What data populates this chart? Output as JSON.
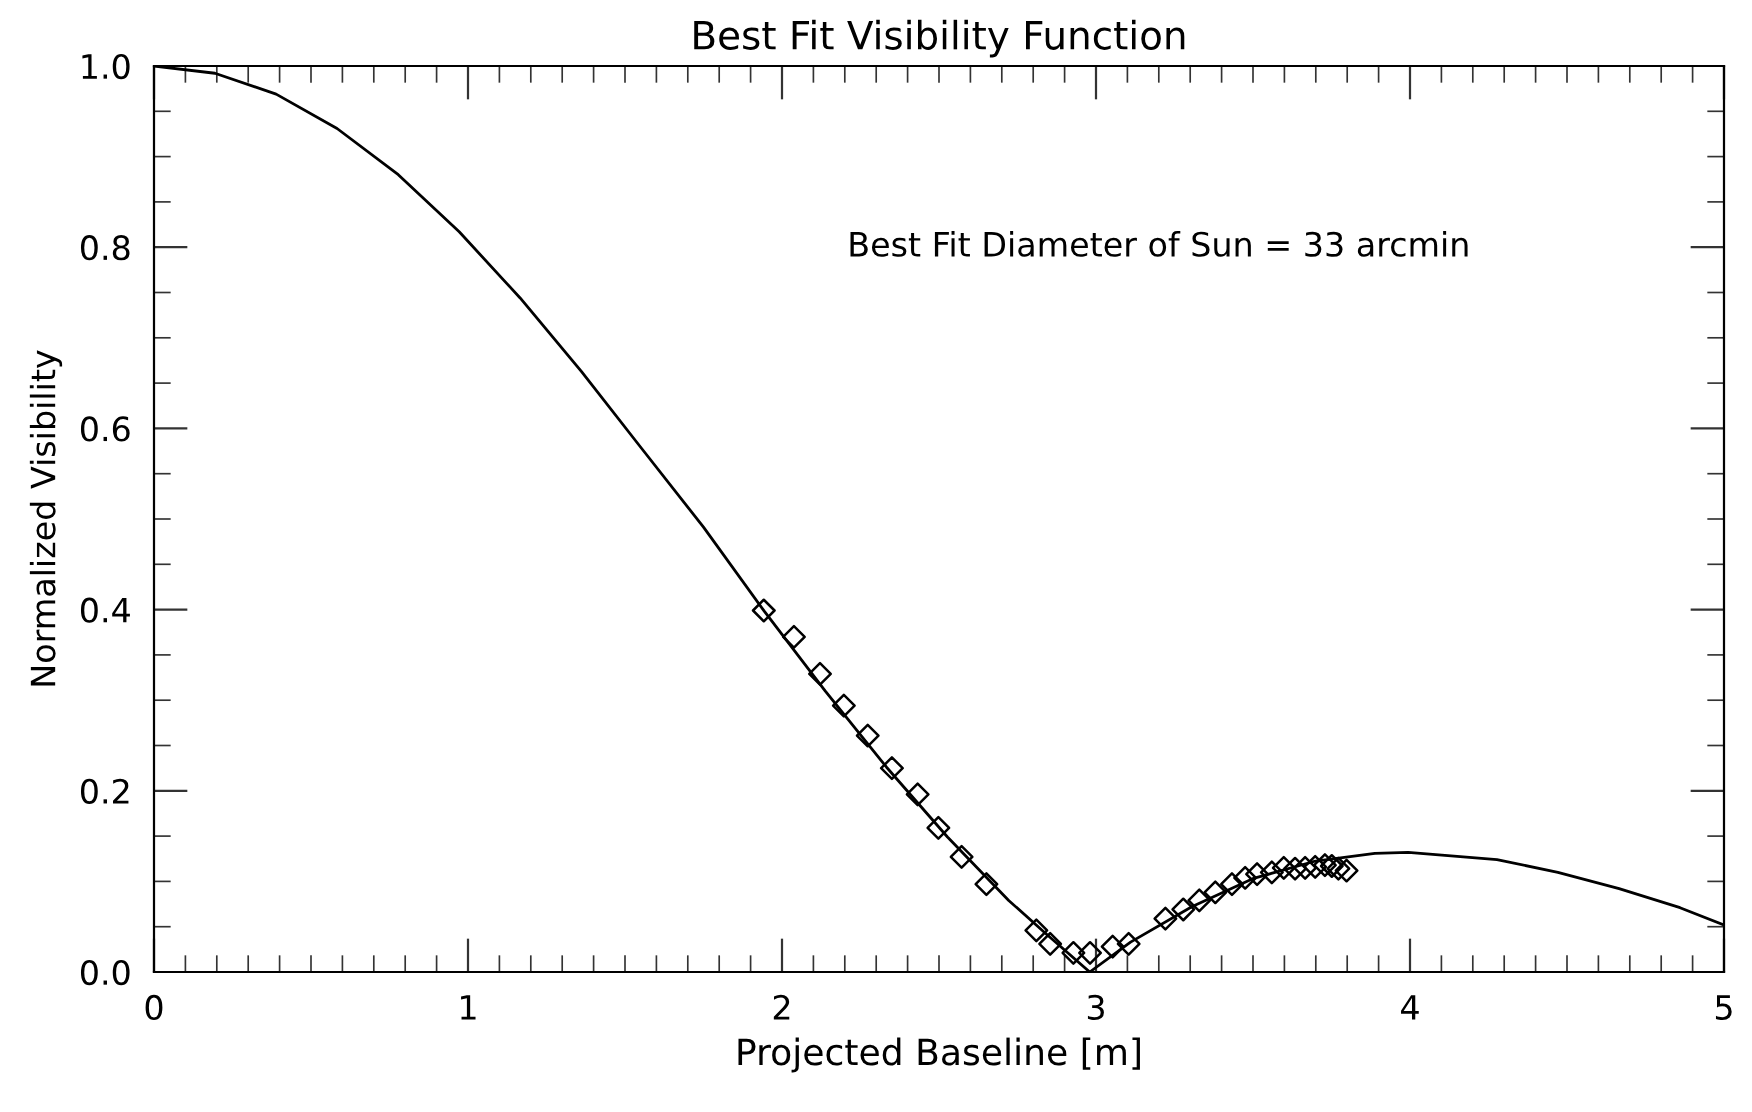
{
  "chart_data": {
    "type": "line",
    "title": "Best Fit Visibility Function",
    "xlabel": "Projected Baseline [m]",
    "ylabel": "Normalized Visibility",
    "xlim": [
      0,
      5
    ],
    "xticks": [
      0,
      1,
      2,
      3,
      4,
      5
    ],
    "ylim": [
      0,
      1.0
    ],
    "yticks": [
      {
        "value": 0,
        "label": "0.0"
      },
      0.2,
      0.4,
      0.6,
      0.8,
      {
        "value": 1,
        "label": "1.0"
      }
    ],
    "grid": false,
    "annotations": [
      "Best Fit Diameter of Sun = 33 arcmin"
    ],
    "series": [
      {
        "color": "#000000",
        "marker": "none",
        "line_style": "solid",
        "x": [
          0,
          0.194,
          0.389,
          0.583,
          0.778,
          0.972,
          1.166,
          1.361,
          1.555,
          1.75,
          1.944,
          2.138,
          2.333,
          2.527,
          2.722,
          2.838,
          2.98,
          3.11,
          3.305,
          3.499,
          3.694,
          3.888,
          3.994,
          4.277,
          4.471,
          4.666,
          4.86,
          5.0
        ],
        "values": [
          1.0,
          0.992,
          0.969,
          0.931,
          0.88,
          0.817,
          0.744,
          0.663,
          0.577,
          0.491,
          0.398,
          0.31,
          0.226,
          0.149,
          0.079,
          0.043,
          0.0,
          0.033,
          0.072,
          0.103,
          0.122,
          0.131,
          0.132,
          0.124,
          0.11,
          0.092,
          0.071,
          0.052
        ]
      },
      {
        "type": "scatter",
        "color": "#000000",
        "marker": "diamond",
        "x": [
          1.942,
          2.038,
          2.121,
          2.197,
          2.273,
          2.35,
          2.432,
          2.498,
          2.572,
          2.651,
          2.81,
          2.854,
          2.928,
          2.981,
          3.053,
          3.104,
          3.221,
          3.278,
          3.329,
          3.38,
          3.433,
          3.475,
          3.513,
          3.56,
          3.598,
          3.634,
          3.666,
          3.698,
          3.729,
          3.751,
          3.772,
          3.798
        ],
        "values": [
          0.399,
          0.37,
          0.329,
          0.294,
          0.261,
          0.225,
          0.196,
          0.159,
          0.127,
          0.097,
          0.046,
          0.031,
          0.021,
          0.021,
          0.028,
          0.031,
          0.059,
          0.069,
          0.079,
          0.088,
          0.097,
          0.104,
          0.108,
          0.11,
          0.115,
          0.114,
          0.115,
          0.116,
          0.118,
          0.117,
          0.114,
          0.112
        ]
      }
    ]
  }
}
